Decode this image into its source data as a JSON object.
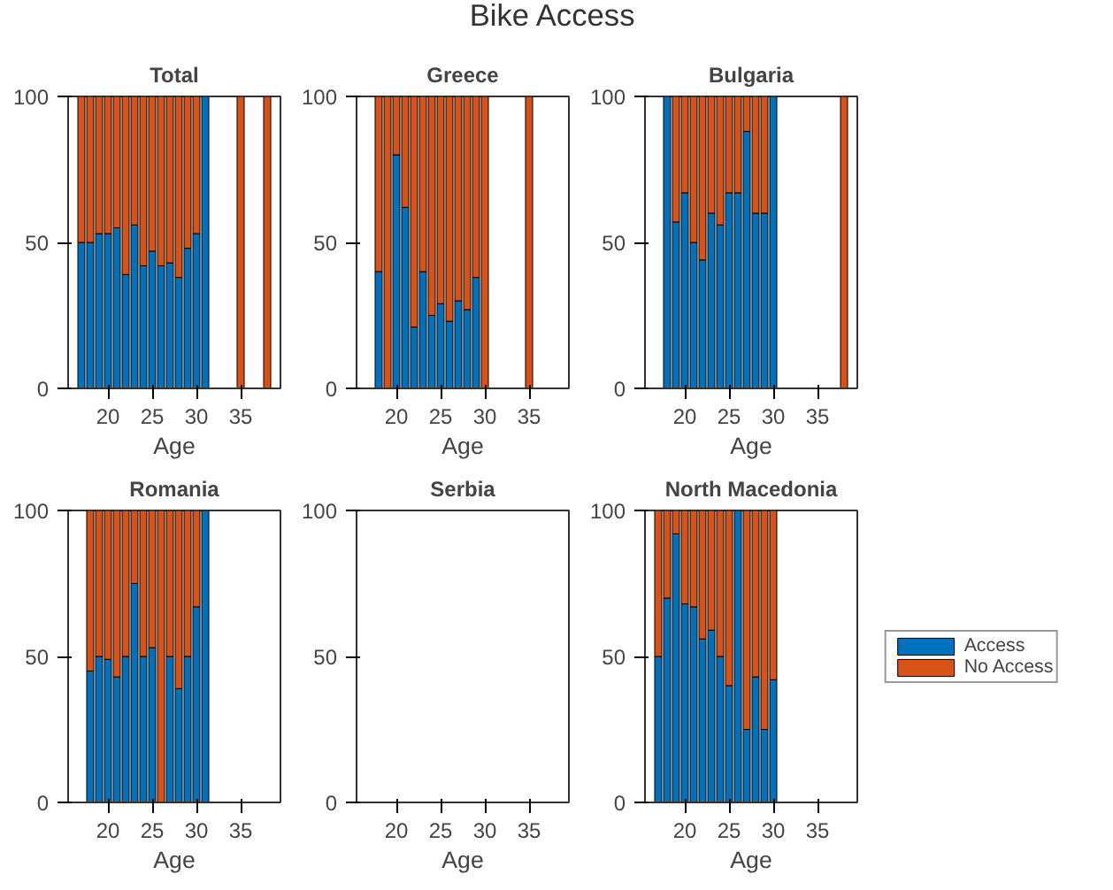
{
  "chart_data": [
    {
      "type": "other",
      "title": "Bike Access"
    },
    {
      "type": "bar",
      "title": "Total",
      "xlabel": "Age",
      "stacked": true,
      "x": [
        17,
        18,
        19,
        20,
        21,
        22,
        23,
        24,
        25,
        26,
        27,
        28,
        29,
        30,
        31,
        35,
        38
      ],
      "xlim": [
        15.5,
        39.5
      ],
      "xticks": [
        20,
        25,
        30,
        35
      ],
      "ylim": [
        0,
        100
      ],
      "yticks": [
        0,
        50,
        100
      ],
      "legend": false,
      "series": [
        {
          "color": "#0072bd",
          "values": [
            50,
            50,
            53,
            53,
            55,
            39,
            56,
            42,
            47,
            42,
            43,
            38,
            48,
            53,
            100,
            0,
            0
          ]
        },
        {
          "color": "#d95319",
          "values": [
            50,
            50,
            47,
            47,
            45,
            61,
            44,
            58,
            53,
            58,
            57,
            62,
            52,
            47,
            0,
            100,
            100
          ]
        }
      ]
    },
    {
      "type": "bar",
      "title": "Greece",
      "xlabel": "Age",
      "stacked": true,
      "x": [
        18,
        19,
        20,
        21,
        22,
        23,
        24,
        25,
        26,
        27,
        28,
        29,
        30,
        35
      ],
      "xlim": [
        15.5,
        39.5
      ],
      "xticks": [
        20,
        25,
        30,
        35
      ],
      "ylim": [
        0,
        100
      ],
      "yticks": [
        0,
        50,
        100
      ],
      "legend": false,
      "series": [
        {
          "color": "#0072bd",
          "values": [
            40,
            0,
            80,
            62,
            21,
            40,
            25,
            29,
            23,
            30,
            27,
            38,
            0,
            0
          ]
        },
        {
          "color": "#d95319",
          "values": [
            60,
            100,
            20,
            38,
            79,
            60,
            75,
            71,
            77,
            70,
            73,
            62,
            100,
            100
          ]
        }
      ]
    },
    {
      "type": "bar",
      "title": "Bulgaria",
      "xlabel": "Age",
      "stacked": true,
      "x": [
        18,
        19,
        20,
        21,
        22,
        23,
        24,
        25,
        26,
        27,
        28,
        29,
        30,
        38
      ],
      "xlim": [
        15.5,
        39.5
      ],
      "xticks": [
        20,
        25,
        30,
        35
      ],
      "ylim": [
        0,
        100
      ],
      "yticks": [
        0,
        50,
        100
      ],
      "legend": false,
      "series": [
        {
          "color": "#0072bd",
          "values": [
            100,
            57,
            67,
            50,
            44,
            60,
            56,
            67,
            67,
            88,
            60,
            60,
            100,
            0
          ]
        },
        {
          "color": "#d95319",
          "values": [
            0,
            43,
            33,
            50,
            56,
            40,
            44,
            33,
            33,
            12,
            40,
            40,
            0,
            100
          ]
        }
      ]
    },
    {
      "type": "bar",
      "title": "Romania",
      "xlabel": "Age",
      "stacked": true,
      "x": [
        18,
        19,
        20,
        21,
        22,
        23,
        24,
        25,
        26,
        27,
        28,
        29,
        30,
        31
      ],
      "xlim": [
        15.5,
        39.5
      ],
      "xticks": [
        20,
        25,
        30,
        35
      ],
      "ylim": [
        0,
        100
      ],
      "yticks": [
        0,
        50,
        100
      ],
      "legend": false,
      "series": [
        {
          "color": "#0072bd",
          "values": [
            45,
            50,
            49,
            43,
            50,
            75,
            50,
            53,
            0,
            50,
            39,
            50,
            67,
            100
          ]
        },
        {
          "color": "#d95319",
          "values": [
            55,
            50,
            51,
            57,
            50,
            25,
            50,
            47,
            100,
            50,
            61,
            50,
            33,
            0
          ]
        }
      ]
    },
    {
      "type": "bar",
      "title": "Serbia",
      "xlabel": "Age",
      "stacked": true,
      "xlim": [
        15.5,
        39.5
      ],
      "xticks": [
        20,
        25,
        30,
        35
      ],
      "ylim": [
        0,
        100
      ],
      "yticks": [
        0,
        50,
        100
      ]
    },
    {
      "type": "bar",
      "title": "North Macedonia",
      "xlabel": "Age",
      "stacked": true,
      "x": [
        17,
        18,
        19,
        20,
        21,
        22,
        23,
        24,
        25,
        26,
        27,
        28,
        29,
        30
      ],
      "xlim": [
        15.5,
        39.5
      ],
      "xticks": [
        20,
        25,
        30,
        35
      ],
      "ylim": [
        0,
        100
      ],
      "yticks": [
        0,
        50,
        100
      ],
      "legend": "right",
      "series": [
        {
          "name": "Access",
          "color": "#0072bd",
          "values": [
            50,
            70,
            92,
            68,
            67,
            56,
            59,
            50,
            40,
            100,
            25,
            43,
            25,
            42
          ]
        },
        {
          "name": "No Access",
          "color": "#d95319",
          "values": [
            50,
            30,
            8,
            32,
            33,
            44,
            41,
            50,
            60,
            0,
            75,
            57,
            75,
            58
          ]
        }
      ]
    }
  ]
}
